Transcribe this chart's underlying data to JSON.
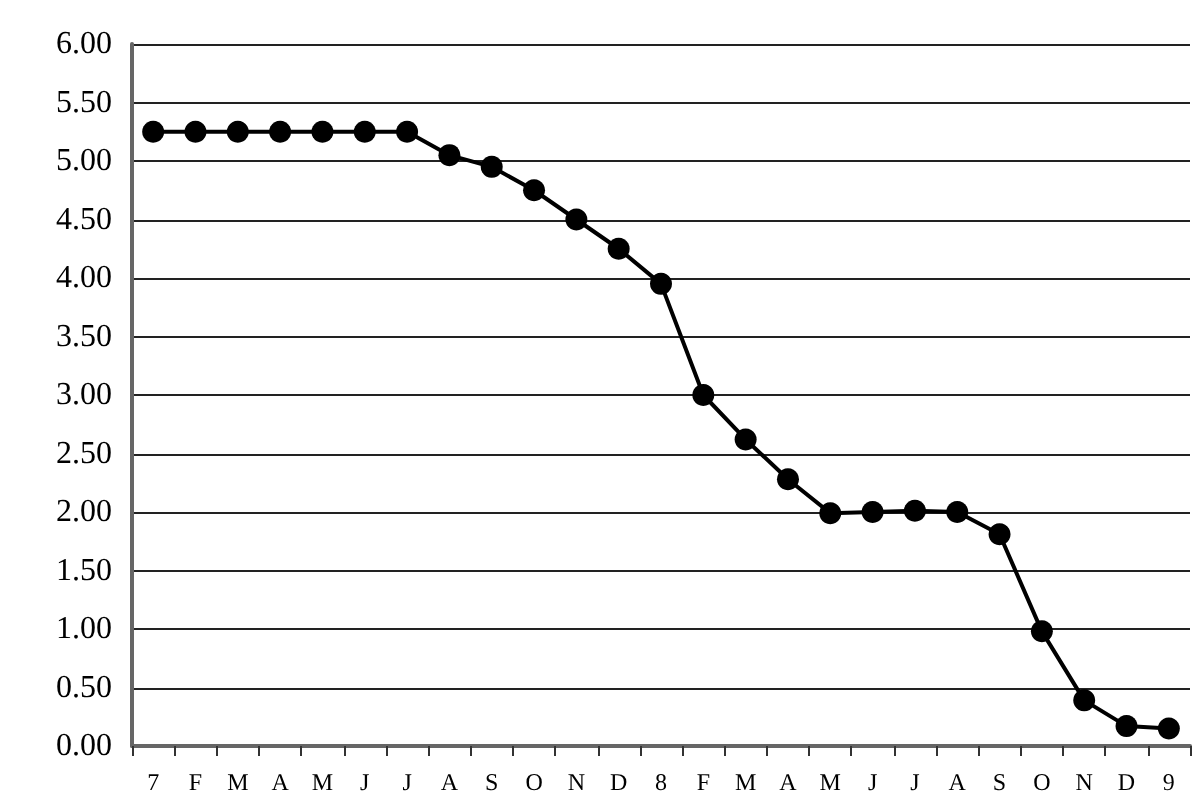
{
  "chart_data": {
    "type": "line",
    "categories": [
      "7",
      "F",
      "M",
      "A",
      "M",
      "J",
      "J",
      "A",
      "S",
      "O",
      "N",
      "D",
      "8",
      "F",
      "M",
      "A",
      "M",
      "J",
      "J",
      "A",
      "S",
      "O",
      "N",
      "D",
      "9"
    ],
    "series": [
      {
        "color": "#000000",
        "values": [
          5.25,
          5.25,
          5.25,
          5.25,
          5.25,
          5.25,
          5.25,
          5.05,
          4.95,
          4.75,
          4.5,
          4.25,
          3.95,
          3.0,
          2.62,
          2.28,
          1.99,
          2.0,
          2.01,
          2.0,
          1.81,
          0.98,
          0.39,
          0.17,
          0.15
        ]
      }
    ],
    "ylim": [
      0,
      6
    ],
    "yticks": [
      {
        "value": 0,
        "label": "0.00"
      },
      {
        "value": 0.5,
        "label": "0.50"
      },
      {
        "value": 1,
        "label": "1.00"
      },
      {
        "value": 1.5,
        "label": "1.50"
      },
      {
        "value": 2,
        "label": "2.00"
      },
      {
        "value": 2.5,
        "label": "2.50"
      },
      {
        "value": 3,
        "label": "3.00"
      },
      {
        "value": 3.5,
        "label": "3.50"
      },
      {
        "value": 4,
        "label": "4.00"
      },
      {
        "value": 4.5,
        "label": "4.50"
      },
      {
        "value": 5,
        "label": "5.00"
      },
      {
        "value": 5.5,
        "label": "5.50"
      },
      {
        "value": 6,
        "label": "6.00"
      }
    ],
    "grid": "y",
    "marker": "circle",
    "line_style": "solid"
  }
}
